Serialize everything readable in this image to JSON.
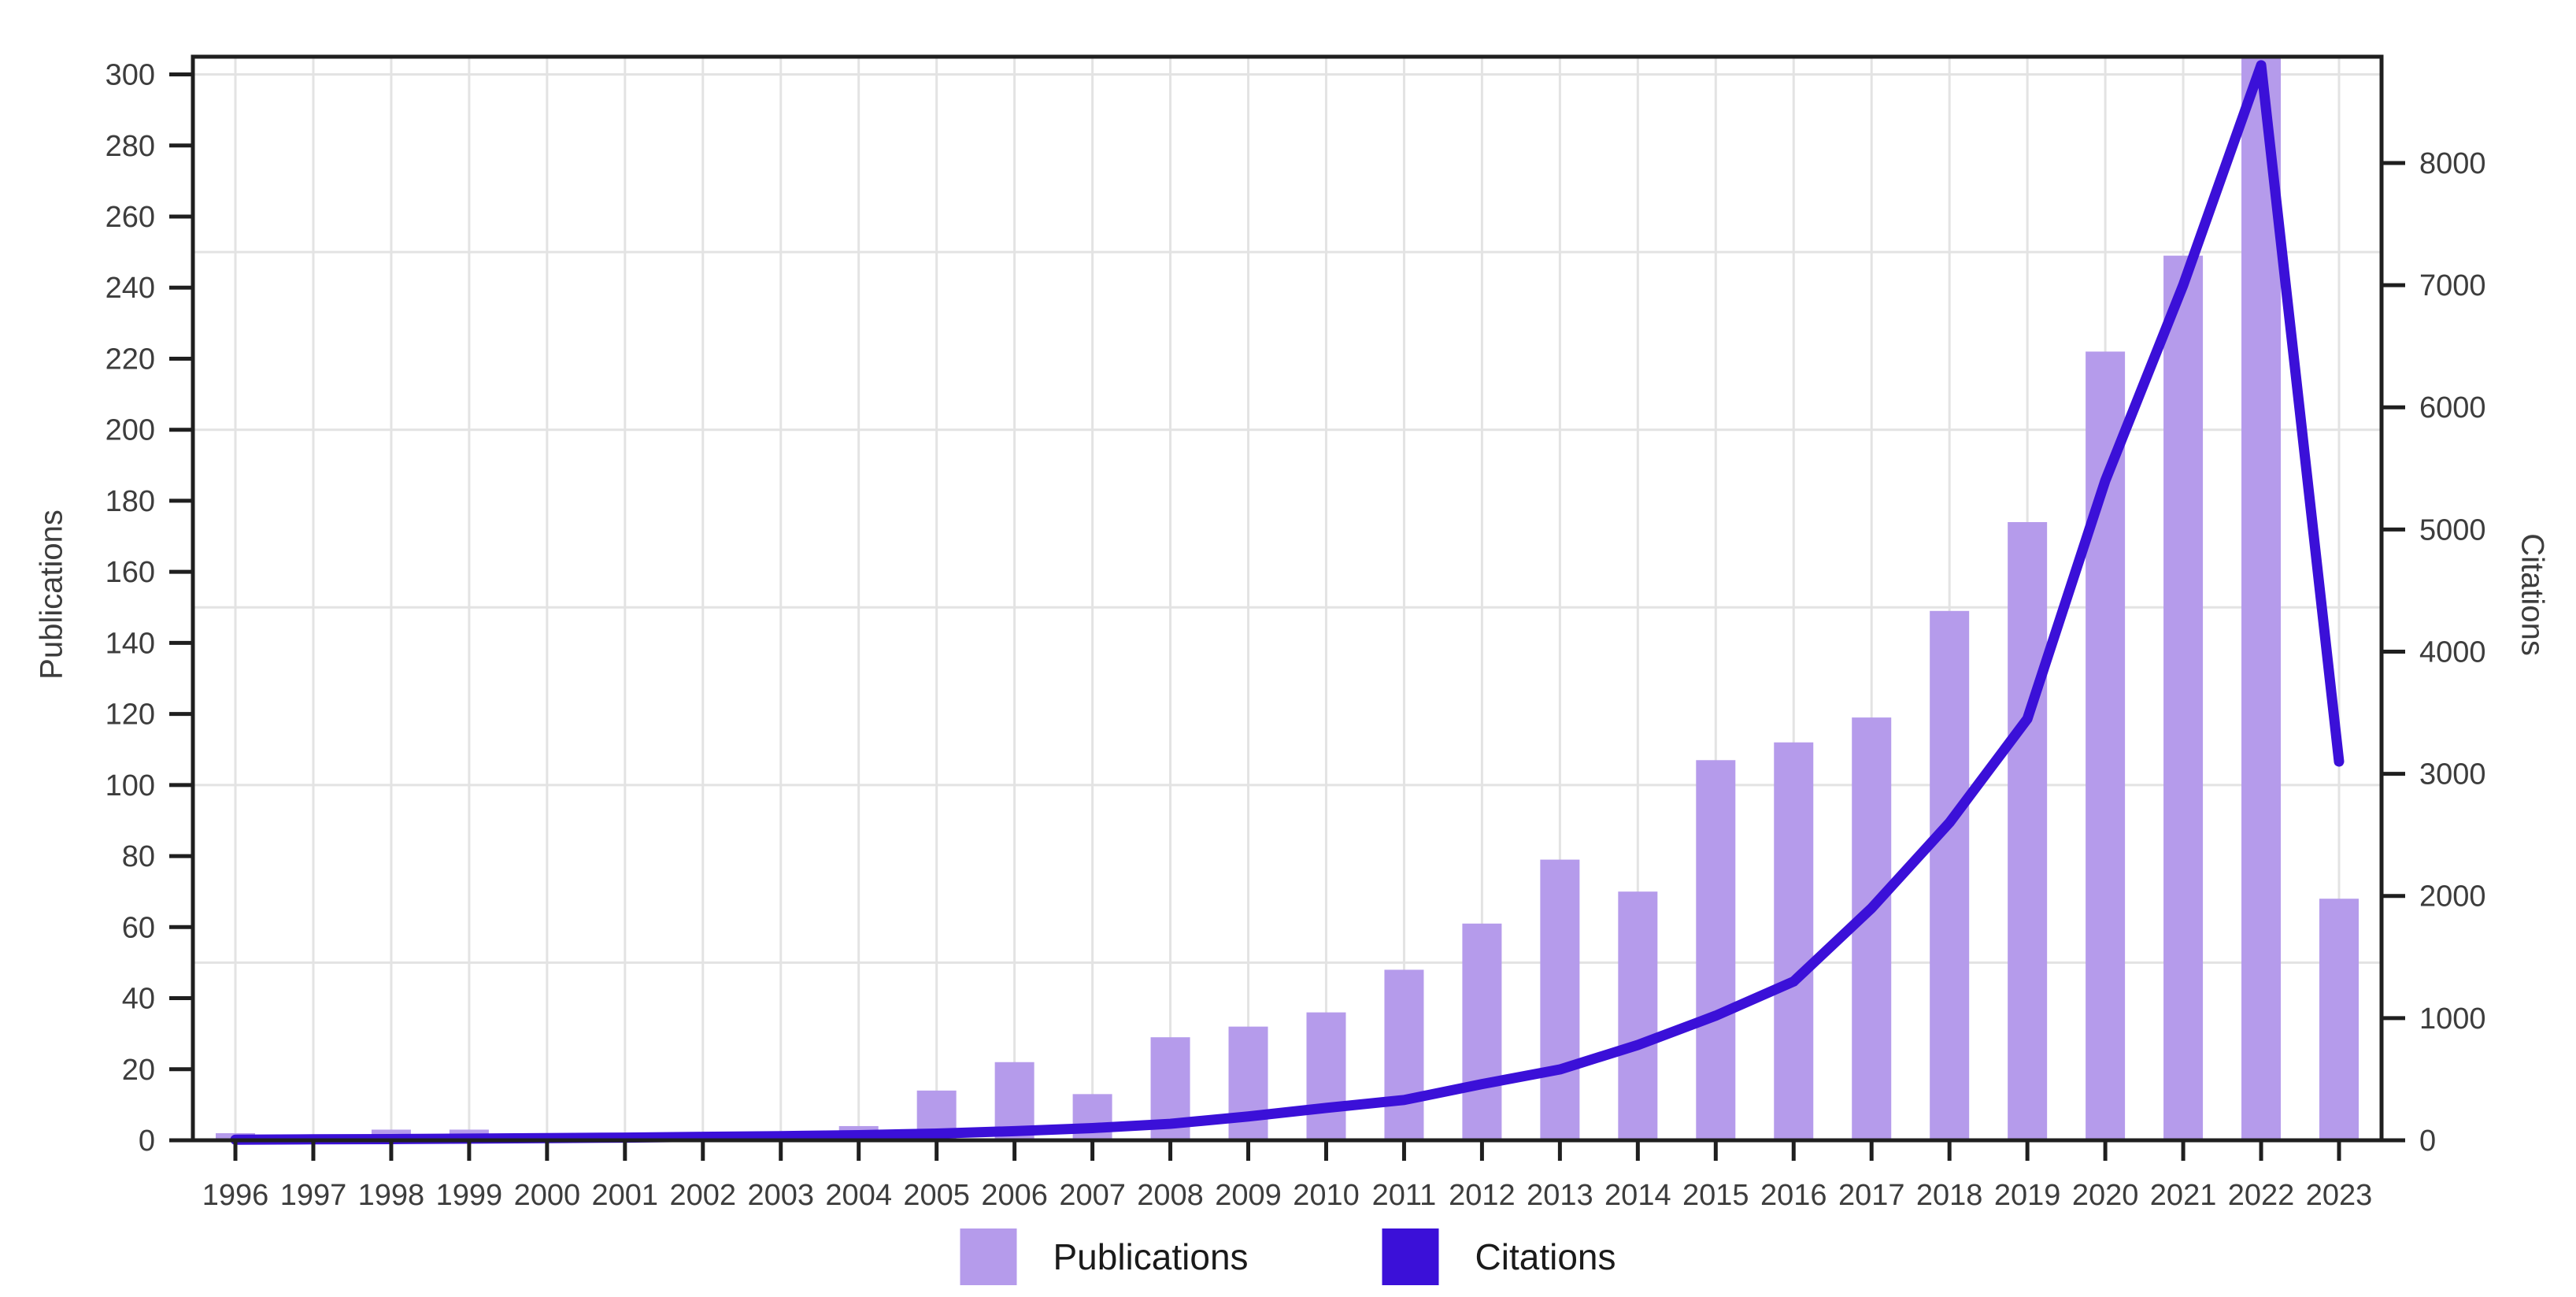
{
  "chart_data": {
    "type": "bar",
    "title": "",
    "categories": [
      "1996",
      "1997",
      "1998",
      "1999",
      "2000",
      "2001",
      "2002",
      "2003",
      "2004",
      "2005",
      "2006",
      "2007",
      "2008",
      "2009",
      "2010",
      "2011",
      "2012",
      "2013",
      "2014",
      "2015",
      "2016",
      "2017",
      "2018",
      "2019",
      "2020",
      "2021",
      "2022",
      "2023"
    ],
    "series": [
      {
        "name": "Publications",
        "type": "bar",
        "axis": "left",
        "color": "#b59beb",
        "values": [
          2,
          1,
          3,
          3,
          2,
          2,
          2,
          1,
          4,
          14,
          22,
          13,
          29,
          32,
          36,
          48,
          61,
          79,
          70,
          107,
          112,
          119,
          149,
          174,
          222,
          249,
          305,
          68
        ]
      },
      {
        "name": "Citations",
        "type": "line",
        "axis": "right",
        "color": "#3b10d8",
        "values": [
          5,
          8,
          10,
          14,
          18,
          22,
          28,
          34,
          42,
          55,
          75,
          100,
          135,
          195,
          265,
          330,
          460,
          580,
          780,
          1020,
          1300,
          1900,
          2600,
          3450,
          5400,
          7000,
          8800,
          3100
        ]
      }
    ],
    "left_axis": {
      "label": "Publications",
      "ticks": [
        0,
        20,
        40,
        60,
        80,
        100,
        120,
        140,
        160,
        180,
        200,
        220,
        240,
        260,
        280,
        300
      ],
      "min": 0,
      "max": 305,
      "grid_interval": 50
    },
    "right_axis": {
      "label": "Citations",
      "ticks": [
        0,
        1000,
        2000,
        3000,
        4000,
        5000,
        6000,
        7000,
        8000
      ],
      "min": 0,
      "max": 8870
    },
    "xlabel": "",
    "ylabel": "Publications",
    "y2label": "Citations",
    "grid": true,
    "legend_position": "bottom",
    "colors": {
      "bar": "#b59beb",
      "line": "#3b10d8",
      "frame": "#1f1f1f",
      "gridline": "#e3e3e3",
      "tick_text": "#3d3d3d"
    }
  },
  "legend": {
    "items": [
      {
        "label": "Publications"
      },
      {
        "label": "Citations"
      }
    ]
  }
}
